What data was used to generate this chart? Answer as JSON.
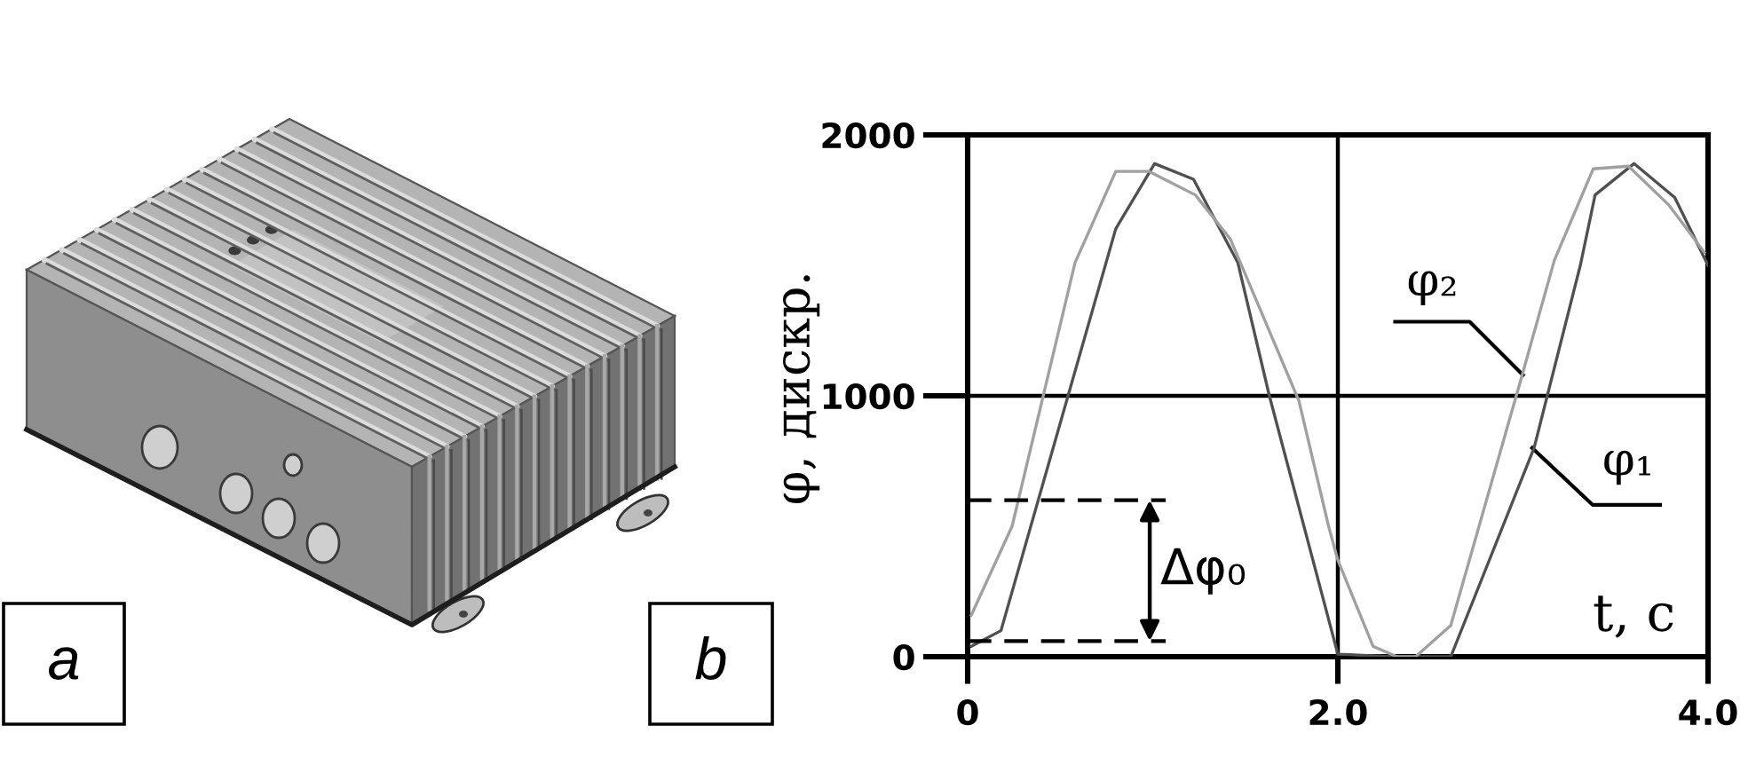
{
  "chart_data": {
    "type": "line",
    "xlabel": "t, с",
    "ylabel": "φ, дискр.",
    "series": [
      {
        "color": "#505050",
        "x": [
          0.02,
          0.18,
          0.8,
          1.01,
          1.22,
          1.46,
          1.63,
          2.0,
          2.3,
          2.61,
          3.06,
          3.31,
          3.39,
          3.6,
          3.82,
          4.0
        ],
        "values": [
          40,
          100,
          1640,
          1890,
          1830,
          1510,
          1000,
          10,
          0,
          0,
          800,
          1500,
          1770,
          1890,
          1760,
          1500
        ]
      },
      {
        "color": "#a0a0a0",
        "x": [
          0.02,
          0.24,
          0.58,
          0.8,
          0.98,
          1.23,
          1.42,
          1.79,
          1.95,
          2.0,
          2.19,
          2.32,
          2.42,
          2.61,
          2.98,
          3.17,
          3.38,
          3.57,
          3.79,
          3.98
        ],
        "values": [
          160,
          500,
          1510,
          1860,
          1860,
          1770,
          1600,
          980,
          500,
          370,
          40,
          0,
          0,
          120,
          1040,
          1520,
          1870,
          1880,
          1730,
          1550
        ]
      },
      {
        "color": "#000000",
        "line_style": "dashed",
        "x": [
          0,
          1.07
        ],
        "values": [
          600,
          600
        ]
      },
      {
        "color": "#000000",
        "line_style": "dashed",
        "x": [
          0,
          1.07
        ],
        "values": [
          60,
          60
        ]
      }
    ],
    "xlim": [
      0,
      4
    ],
    "ylim": [
      0,
      2000
    ],
    "xticks": [
      0,
      {
        "value": 2,
        "label": "2.0"
      },
      {
        "value": 4,
        "label": "4.0"
      }
    ],
    "yticks": [
      0,
      1000,
      2000
    ],
    "ref_lines": [
      {
        "axis": "y",
        "value": 1000,
        "color": "#000000"
      },
      {
        "axis": "x",
        "value": 2,
        "color": "#000000"
      }
    ],
    "line_style": "solid",
    "annotations": [
      {
        "text": "φ₂",
        "x": 3.0,
        "y": 1080
      },
      {
        "text": "φ₁",
        "x": 3.05,
        "y": 800
      },
      "Δφ₀",
      "a",
      "b"
    ]
  }
}
